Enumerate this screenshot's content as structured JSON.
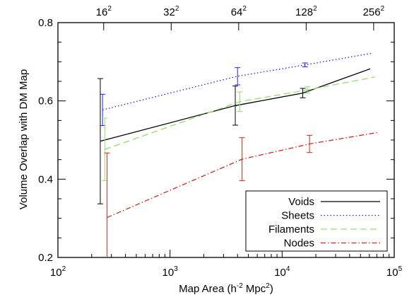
{
  "chart_data": {
    "type": "line",
    "xlabel": "Map Area (h",
    "xlabel_sup": "-2",
    "xlabel_mid": " Mpc",
    "xlabel_sup2": "2",
    "xlabel_end": ")",
    "ylabel": "Volume Overlap with DM Map",
    "xscale": "log",
    "xlim": [
      100,
      100000
    ],
    "ylim": [
      0.2,
      0.8
    ],
    "xticks": [
      {
        "value": 100,
        "base": "10",
        "exp": "2"
      },
      {
        "value": 1000,
        "base": "10",
        "exp": "3"
      },
      {
        "value": 10000,
        "base": "10",
        "exp": "4"
      },
      {
        "value": 100000,
        "base": "10",
        "exp": "5"
      }
    ],
    "yticks": [
      {
        "value": 0.2,
        "label": "0.2"
      },
      {
        "value": 0.4,
        "label": "0.4"
      },
      {
        "value": 0.6,
        "label": "0.6"
      },
      {
        "value": 0.8,
        "label": "0.8"
      }
    ],
    "top_ticks": [
      {
        "value": 256,
        "base": "16",
        "exp": "2"
      },
      {
        "value": 1024,
        "base": "32",
        "exp": "2"
      },
      {
        "value": 4096,
        "base": "64",
        "exp": "2"
      },
      {
        "value": 16384,
        "base": "128",
        "exp": "2"
      },
      {
        "value": 65536,
        "base": "256",
        "exp": "2"
      }
    ],
    "legend_position": "bottom-right",
    "series": [
      {
        "name": "Voids",
        "color": "#000000",
        "dash": "",
        "points": [
          {
            "x": 256,
            "y": 0.497,
            "err": 0.16
          },
          {
            "x": 4096,
            "y": 0.588,
            "err": 0.05
          },
          {
            "x": 16384,
            "y": 0.62,
            "err": 0.012
          },
          {
            "x": 65536,
            "y": 0.682,
            "err": null
          }
        ]
      },
      {
        "name": "Sheets",
        "color": "#2020ff",
        "dash": "1.5,3",
        "points": [
          {
            "x": 256,
            "y": 0.577,
            "err": 0.04
          },
          {
            "x": 4096,
            "y": 0.663,
            "err": 0.022
          },
          {
            "x": 16384,
            "y": 0.692,
            "err": 0.005
          },
          {
            "x": 65536,
            "y": 0.722,
            "err": null
          }
        ]
      },
      {
        "name": "Filaments",
        "color": "#90e070",
        "dash": "9,5",
        "points": [
          {
            "x": 256,
            "y": 0.476,
            "err": 0.08
          },
          {
            "x": 4096,
            "y": 0.598,
            "err": 0.025
          },
          {
            "x": 16384,
            "y": 0.628,
            "err": 0.008
          },
          {
            "x": 65536,
            "y": 0.661,
            "err": null
          }
        ]
      },
      {
        "name": "Nodes",
        "color": "#cc2a18",
        "dash": "7,3,1.5,3",
        "points": [
          {
            "x": 256,
            "y": 0.302,
            "err": 0.165
          },
          {
            "x": 4096,
            "y": 0.451,
            "err": 0.055
          },
          {
            "x": 16384,
            "y": 0.49,
            "err": 0.022
          },
          {
            "x": 65536,
            "y": 0.519,
            "err": null
          }
        ]
      }
    ]
  }
}
